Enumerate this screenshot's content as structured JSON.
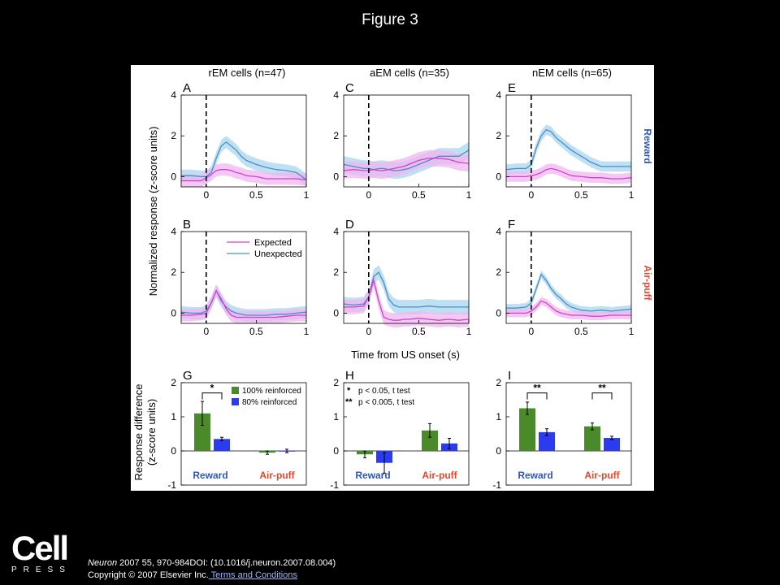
{
  "figure_title": "Figure 3",
  "logo": {
    "wordmark": "Cell",
    "subword": "PRESS"
  },
  "footer": {
    "journal": "Neuron",
    "citation_rest": " 2007 55, 970-984DOI: (10.1016/j.neuron.2007.08.004)",
    "copyright": "Copyright © 2007 Elsevier Inc.",
    "terms_link": " Terms and Conditions"
  },
  "colors": {
    "expected": "#d43fd0",
    "expected_band": "#efb6ee",
    "unexpected": "#4a8fc4",
    "unexpected_band": "#a9d6ee",
    "reinforced_100": "#4a8a2a",
    "reinforced_80": "#2b3cf0",
    "reward_label": "#2f55b8",
    "airpuff_label": "#e8452a"
  },
  "chart_data": {
    "type": "line",
    "columns": [
      "rEM cells (n=47)",
      "aEM cells (n=35)",
      "nEM cells (n=65)"
    ],
    "row_labels": [
      "Reward",
      "Air-puff"
    ],
    "ylabel_top": "Normalized response (z-score units)",
    "xlabel_top": "Time from US onset (s)",
    "ylabel_bottom_line1": "Response difference",
    "ylabel_bottom_line2": "(z-score units)",
    "legend": [
      "Expected",
      "Unexpected"
    ],
    "time_panels": {
      "xlim": [
        -0.25,
        1.0
      ],
      "ylim": [
        -0.5,
        4
      ],
      "xticks": [
        "0",
        "0.5",
        "1"
      ],
      "yticks": [
        "0",
        "2",
        "4"
      ],
      "x": [
        -0.25,
        -0.15,
        -0.05,
        0.0,
        0.05,
        0.1,
        0.15,
        0.2,
        0.25,
        0.3,
        0.35,
        0.4,
        0.5,
        0.6,
        0.7,
        0.8,
        0.9,
        1.0
      ],
      "panels": [
        {
          "letter": "A",
          "expected": [
            -0.2,
            -0.2,
            -0.2,
            -0.05,
            0.1,
            0.3,
            0.35,
            0.35,
            0.3,
            0.2,
            0.15,
            0.05,
            0.0,
            -0.1,
            -0.1,
            -0.1,
            -0.1,
            -0.15
          ],
          "unexpected": [
            0.05,
            0.05,
            0.0,
            0.0,
            0.2,
            0.9,
            1.5,
            1.7,
            1.5,
            1.3,
            1.0,
            0.8,
            0.6,
            0.45,
            0.35,
            0.3,
            0.2,
            -0.15
          ],
          "band": 0.3
        },
        {
          "letter": "B",
          "expected": [
            -0.1,
            -0.1,
            -0.05,
            0.0,
            0.5,
            1.1,
            0.7,
            0.2,
            -0.1,
            -0.2,
            -0.2,
            -0.2,
            -0.2,
            -0.2,
            -0.2,
            -0.15,
            -0.1,
            -0.1
          ],
          "unexpected": [
            0.05,
            0.0,
            0.0,
            0.1,
            0.5,
            1.1,
            0.6,
            0.3,
            0.1,
            0.0,
            -0.05,
            -0.1,
            -0.1,
            -0.1,
            -0.05,
            -0.05,
            0.0,
            0.05
          ],
          "band": 0.3
        },
        {
          "letter": "C",
          "expected": [
            0.3,
            0.35,
            0.3,
            0.3,
            0.35,
            0.3,
            0.3,
            0.35,
            0.4,
            0.45,
            0.5,
            0.6,
            0.8,
            0.9,
            0.9,
            0.85,
            0.7,
            0.65
          ],
          "unexpected": [
            0.6,
            0.5,
            0.4,
            0.4,
            0.35,
            0.4,
            0.4,
            0.35,
            0.3,
            0.3,
            0.35,
            0.4,
            0.6,
            0.8,
            1.0,
            1.0,
            1.0,
            1.3
          ],
          "band": 0.4
        },
        {
          "letter": "D",
          "expected": [
            0.3,
            0.3,
            0.35,
            0.8,
            1.6,
            0.6,
            -0.2,
            -0.3,
            -0.35,
            -0.35,
            -0.3,
            -0.3,
            -0.25,
            -0.3,
            -0.35,
            -0.3,
            -0.35,
            -0.3
          ],
          "unexpected": [
            0.45,
            0.4,
            0.45,
            0.8,
            1.8,
            2.0,
            1.5,
            0.7,
            0.4,
            0.3,
            0.3,
            0.3,
            0.3,
            0.35,
            0.3,
            0.3,
            0.3,
            0.3
          ],
          "band": 0.35
        },
        {
          "letter": "E",
          "expected": [
            0.0,
            0.0,
            0.0,
            0.05,
            0.1,
            0.2,
            0.35,
            0.4,
            0.35,
            0.25,
            0.15,
            0.05,
            0.0,
            -0.05,
            -0.05,
            -0.1,
            -0.1,
            -0.05
          ],
          "unexpected": [
            0.35,
            0.4,
            0.4,
            0.6,
            1.4,
            2.0,
            2.3,
            2.2,
            1.9,
            1.7,
            1.5,
            1.3,
            1.0,
            0.7,
            0.5,
            0.5,
            0.5,
            0.5
          ],
          "band": 0.25
        },
        {
          "letter": "F",
          "expected": [
            0.0,
            0.0,
            0.0,
            0.1,
            0.3,
            0.6,
            0.5,
            0.3,
            0.1,
            0.0,
            -0.05,
            -0.1,
            -0.1,
            -0.15,
            -0.15,
            -0.1,
            -0.1,
            -0.1
          ],
          "unexpected": [
            0.25,
            0.25,
            0.3,
            0.5,
            1.2,
            1.9,
            1.6,
            1.2,
            0.9,
            0.7,
            0.45,
            0.3,
            0.15,
            0.1,
            0.15,
            0.1,
            0.15,
            0.2
          ],
          "band": 0.2
        }
      ]
    },
    "bar_panels": {
      "ylim": [
        -1,
        2
      ],
      "yticks": [
        "-1",
        "0",
        "1",
        "2"
      ],
      "groups": [
        "Reward",
        "Air-puff"
      ],
      "series_names": [
        "100% reinforced",
        "80% reinforced"
      ],
      "significance_legend": [
        "p < 0.05, t test",
        "p < 0.005, t test"
      ],
      "significance_marks": [
        "*",
        "**"
      ],
      "panels": [
        {
          "letter": "G",
          "values": [
            [
              1.1,
              0.35
            ],
            [
              -0.05,
              0.0
            ]
          ],
          "errors": [
            [
              0.35,
              0.05
            ],
            [
              0.05,
              0.05
            ]
          ],
          "sig": [
            {
              "group": 0,
              "mark": "*"
            }
          ]
        },
        {
          "letter": "H",
          "values": [
            [
              -0.1,
              -0.35
            ],
            [
              0.6,
              0.22
            ]
          ],
          "errors": [
            [
              0.1,
              0.3
            ],
            [
              0.2,
              0.15
            ]
          ],
          "sig": []
        },
        {
          "letter": "I",
          "values": [
            [
              1.25,
              0.55
            ],
            [
              0.72,
              0.38
            ]
          ],
          "errors": [
            [
              0.18,
              0.1
            ],
            [
              0.1,
              0.05
            ]
          ],
          "sig": [
            {
              "group": 0,
              "mark": "**"
            },
            {
              "group": 1,
              "mark": "**"
            }
          ]
        }
      ]
    }
  }
}
